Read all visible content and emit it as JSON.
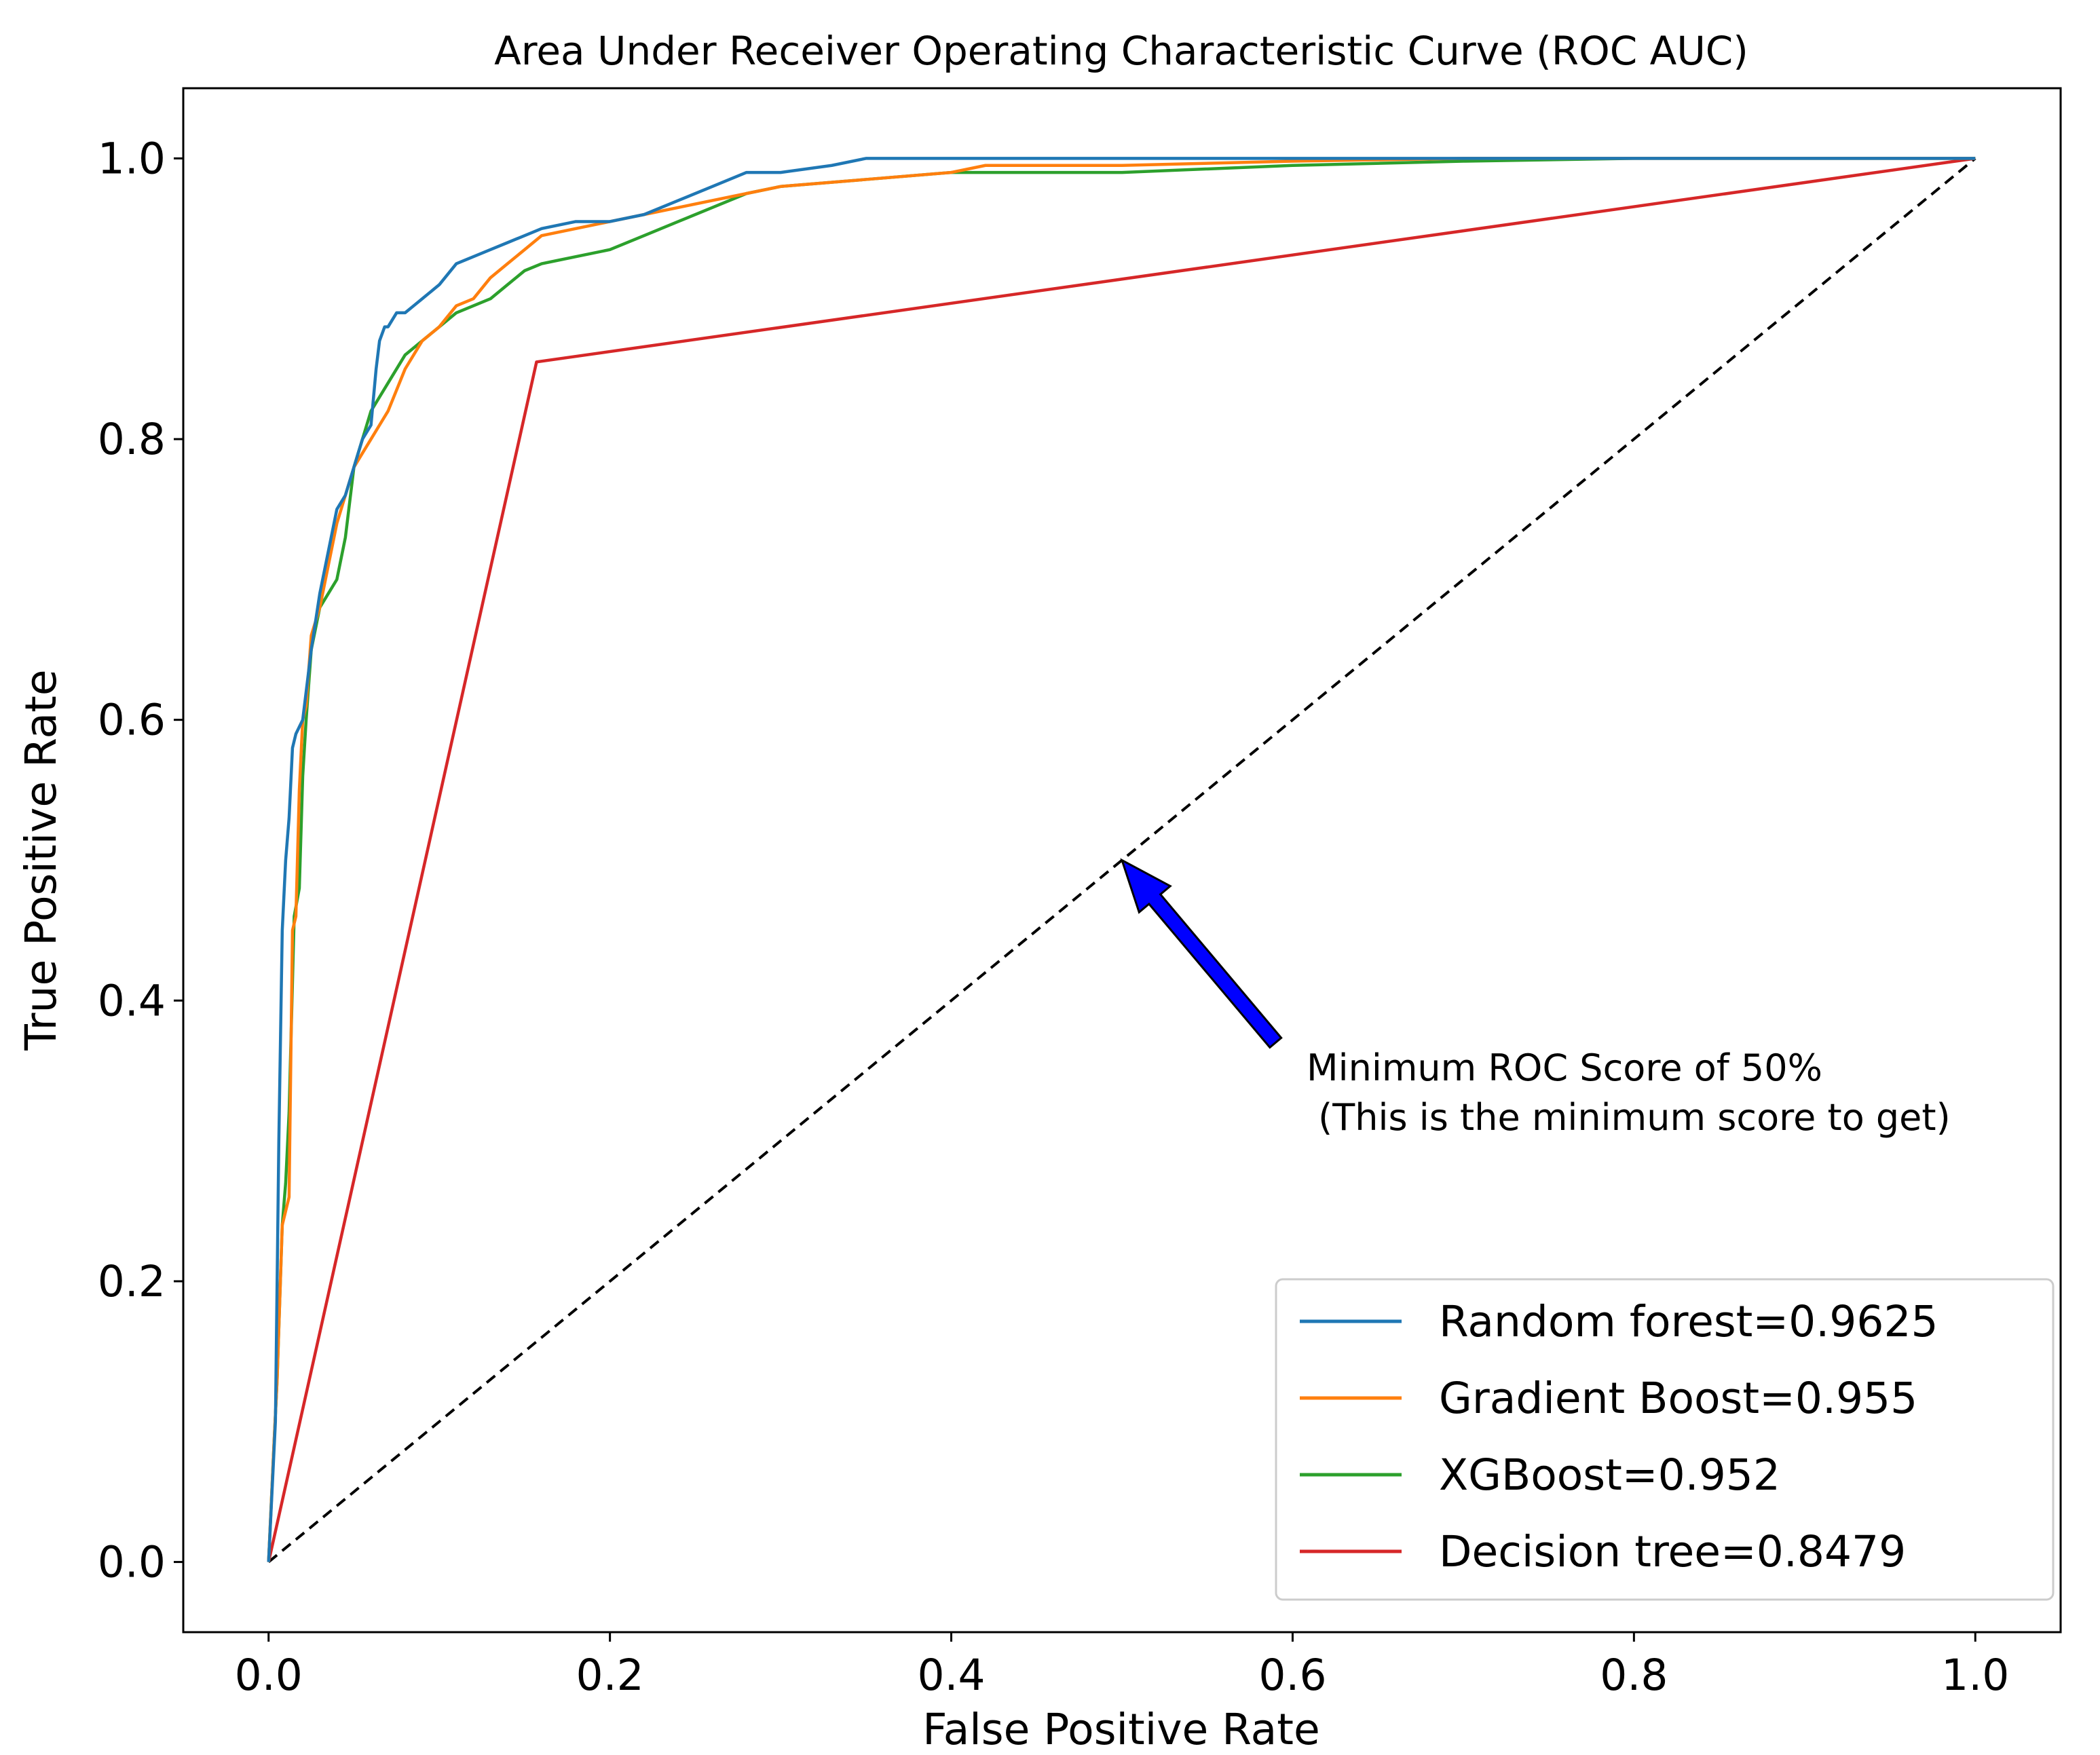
{
  "chart_data": {
    "type": "line",
    "title": "Area Under Receiver Operating Characteristic Curve (ROC AUC)",
    "xlabel": "False Positive Rate",
    "ylabel": "True Positive Rate",
    "xlim": [
      -0.05,
      1.05
    ],
    "ylim": [
      -0.05,
      1.05
    ],
    "xticks": [
      0.0,
      0.2,
      0.4,
      0.6,
      0.8,
      1.0
    ],
    "yticks": [
      0.0,
      0.2,
      0.4,
      0.6,
      0.8,
      1.0
    ],
    "xtick_labels": [
      "0.0",
      "0.2",
      "0.4",
      "0.6",
      "0.8",
      "1.0"
    ],
    "ytick_labels": [
      "0.0",
      "0.2",
      "0.4",
      "0.6",
      "0.8",
      "1.0"
    ],
    "grid": false,
    "legend_position": "bottom-right",
    "series": [
      {
        "name": "Random forest=0.9625",
        "color": "#1f77b4",
        "x": [
          0.0,
          0.004,
          0.006,
          0.008,
          0.01,
          0.012,
          0.014,
          0.016,
          0.02,
          0.025,
          0.03,
          0.035,
          0.04,
          0.045,
          0.05,
          0.055,
          0.06,
          0.063,
          0.065,
          0.068,
          0.07,
          0.075,
          0.08,
          0.085,
          0.09,
          0.1,
          0.11,
          0.12,
          0.13,
          0.14,
          0.15,
          0.16,
          0.18,
          0.2,
          0.22,
          0.24,
          0.26,
          0.27,
          0.28,
          0.3,
          0.33,
          0.35,
          0.4,
          0.44,
          0.5,
          0.6,
          0.7,
          0.8,
          0.9,
          1.0
        ],
        "y": [
          0.0,
          0.1,
          0.3,
          0.45,
          0.5,
          0.53,
          0.58,
          0.59,
          0.6,
          0.65,
          0.69,
          0.72,
          0.75,
          0.76,
          0.78,
          0.8,
          0.81,
          0.85,
          0.87,
          0.88,
          0.88,
          0.89,
          0.89,
          0.895,
          0.9,
          0.91,
          0.925,
          0.93,
          0.935,
          0.94,
          0.945,
          0.95,
          0.955,
          0.955,
          0.96,
          0.97,
          0.98,
          0.985,
          0.99,
          0.99,
          0.995,
          1.0,
          1.0,
          1.0,
          1.0,
          1.0,
          1.0,
          1.0,
          1.0,
          1.0
        ]
      },
      {
        "name": "Gradient Boost=0.955",
        "color": "#ff7f0e",
        "x": [
          0.0,
          0.003,
          0.005,
          0.008,
          0.01,
          0.012,
          0.014,
          0.016,
          0.018,
          0.02,
          0.022,
          0.025,
          0.03,
          0.035,
          0.04,
          0.045,
          0.05,
          0.055,
          0.06,
          0.065,
          0.07,
          0.08,
          0.09,
          0.1,
          0.11,
          0.12,
          0.13,
          0.14,
          0.15,
          0.16,
          0.18,
          0.2,
          0.22,
          0.24,
          0.26,
          0.28,
          0.3,
          0.35,
          0.4,
          0.42,
          0.5,
          0.6,
          0.7,
          0.76,
          0.8,
          0.9,
          1.0
        ],
        "y": [
          0.0,
          0.08,
          0.13,
          0.24,
          0.25,
          0.26,
          0.45,
          0.46,
          0.55,
          0.6,
          0.61,
          0.66,
          0.68,
          0.71,
          0.74,
          0.76,
          0.78,
          0.79,
          0.8,
          0.81,
          0.82,
          0.85,
          0.87,
          0.88,
          0.895,
          0.9,
          0.915,
          0.925,
          0.935,
          0.945,
          0.95,
          0.955,
          0.96,
          0.965,
          0.97,
          0.975,
          0.98,
          0.985,
          0.99,
          0.995,
          0.995,
          0.998,
          1.0,
          1.0,
          1.0,
          1.0,
          1.0
        ]
      },
      {
        "name": "XGBoost=0.952",
        "color": "#2ca02c",
        "x": [
          0.0,
          0.003,
          0.005,
          0.008,
          0.01,
          0.012,
          0.015,
          0.018,
          0.02,
          0.022,
          0.025,
          0.03,
          0.035,
          0.04,
          0.045,
          0.05,
          0.055,
          0.06,
          0.065,
          0.07,
          0.08,
          0.09,
          0.1,
          0.11,
          0.12,
          0.13,
          0.14,
          0.15,
          0.16,
          0.18,
          0.2,
          0.22,
          0.24,
          0.26,
          0.28,
          0.3,
          0.35,
          0.4,
          0.5,
          0.6,
          0.7,
          0.8,
          0.9,
          1.0
        ],
        "y": [
          0.0,
          0.08,
          0.13,
          0.24,
          0.27,
          0.32,
          0.46,
          0.48,
          0.56,
          0.6,
          0.65,
          0.68,
          0.69,
          0.7,
          0.73,
          0.78,
          0.8,
          0.82,
          0.83,
          0.84,
          0.86,
          0.87,
          0.88,
          0.89,
          0.895,
          0.9,
          0.91,
          0.92,
          0.925,
          0.93,
          0.935,
          0.945,
          0.955,
          0.965,
          0.975,
          0.98,
          0.985,
          0.99,
          0.99,
          0.995,
          0.998,
          1.0,
          1.0,
          1.0
        ]
      },
      {
        "name": "Decision tree=0.8479",
        "color": "#d62728",
        "x": [
          0.0,
          0.157,
          1.0
        ],
        "y": [
          0.0,
          0.855,
          1.0
        ]
      }
    ],
    "reference_line": {
      "name": "chance",
      "x": [
        0.0,
        1.0
      ],
      "y": [
        0.0,
        1.0
      ],
      "color": "#000000",
      "style": "dashed"
    },
    "annotation": {
      "text_line1": "Minimum ROC Score of 50%",
      "text_line2": " (This is the minimum score to get)",
      "arrow_color": "#0000ff",
      "arrow_tip": [
        0.5,
        0.5
      ],
      "arrow_tail": [
        0.59,
        0.37
      ],
      "text_anchor": [
        0.6,
        0.345
      ]
    }
  }
}
